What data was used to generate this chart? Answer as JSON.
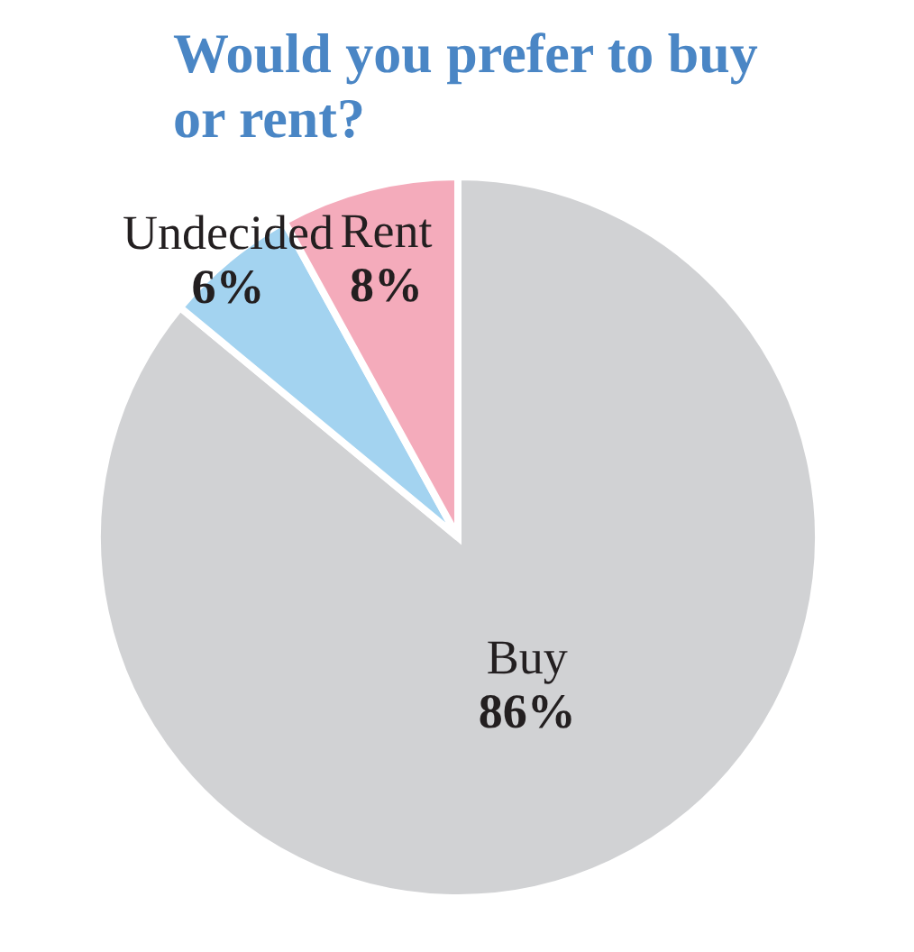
{
  "chart_data": {
    "type": "pie",
    "title": "Would you prefer to buy or rent?",
    "categories": [
      "Buy",
      "Undecided",
      "Rent"
    ],
    "values": [
      86,
      6,
      8
    ],
    "colors": [
      "#d1d2d4",
      "#a3d3f0",
      "#f4abbb"
    ],
    "value_labels": [
      "86%",
      "6%",
      "8%"
    ]
  }
}
